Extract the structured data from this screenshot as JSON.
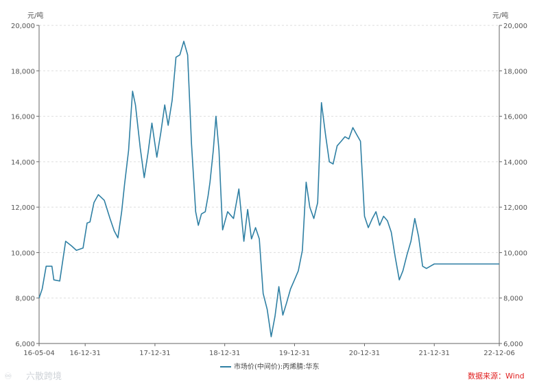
{
  "chart_data": {
    "type": "line",
    "title": "",
    "unit_left": "元/吨",
    "unit_right": "元/吨",
    "ylim": [
      6000,
      20000
    ],
    "yticks": [
      6000,
      8000,
      10000,
      12000,
      14000,
      16000,
      18000,
      20000
    ],
    "ytick_labels": [
      "6,000",
      "8,000",
      "10,000",
      "12,000",
      "14,000",
      "16,000",
      "18,000",
      "20,000"
    ],
    "xlim": [
      "2016-05-04",
      "2022-12-06"
    ],
    "xticks": [
      "2016-05-04",
      "2016-12-31",
      "2017-12-31",
      "2018-12-31",
      "2019-12-31",
      "2020-12-31",
      "2021-12-31",
      "2022-12-06"
    ],
    "xtick_labels": [
      "16-05-04",
      "16-12-31",
      "17-12-31",
      "18-12-31",
      "19-12-31",
      "20-12-31",
      "21-12-31",
      "22-12-06"
    ],
    "grid": true,
    "legend_position": "bottom-center",
    "series": [
      {
        "name": "市场价(中间价):丙烯腈:华东",
        "color": "#2e7fa3",
        "x": [
          "2016-05-04",
          "2016-05-20",
          "2016-06-10",
          "2016-07-10",
          "2016-07-20",
          "2016-08-20",
          "2016-09-20",
          "2016-10-20",
          "2016-11-15",
          "2016-12-20",
          "2017-01-10",
          "2017-01-25",
          "2017-02-15",
          "2017-03-10",
          "2017-04-10",
          "2017-05-10",
          "2017-06-01",
          "2017-06-20",
          "2017-07-10",
          "2017-07-25",
          "2017-08-15",
          "2017-08-25",
          "2017-09-05",
          "2017-09-20",
          "2017-10-15",
          "2017-11-05",
          "2017-11-25",
          "2017-12-15",
          "2018-01-10",
          "2018-01-31",
          "2018-02-20",
          "2018-03-10",
          "2018-03-31",
          "2018-04-20",
          "2018-05-10",
          "2018-05-31",
          "2018-06-20",
          "2018-07-10",
          "2018-08-01",
          "2018-08-15",
          "2018-08-31",
          "2018-09-20",
          "2018-10-05",
          "2018-10-15",
          "2018-11-01",
          "2018-11-15",
          "2018-12-01",
          "2018-12-10",
          "2018-12-20",
          "2019-01-15",
          "2019-02-15",
          "2019-03-15",
          "2019-04-10",
          "2019-04-30",
          "2019-05-20",
          "2019-06-10",
          "2019-06-30",
          "2019-07-20",
          "2019-08-10",
          "2019-08-31",
          "2019-09-20",
          "2019-10-10",
          "2019-10-31",
          "2019-11-20",
          "2019-12-10",
          "2019-12-31",
          "2020-01-20",
          "2020-02-10",
          "2020-03-01",
          "2020-03-20",
          "2020-04-10",
          "2020-04-30",
          "2020-05-20",
          "2020-06-10",
          "2020-06-30",
          "2020-07-20",
          "2020-08-10",
          "2020-08-31",
          "2020-09-20",
          "2020-10-10",
          "2020-10-31",
          "2020-11-20",
          "2020-12-10",
          "2020-12-31",
          "2021-01-20",
          "2021-02-10",
          "2021-03-01",
          "2021-03-20",
          "2021-04-10",
          "2021-04-30",
          "2021-05-20",
          "2021-06-10",
          "2021-07-01",
          "2021-07-20",
          "2021-08-10",
          "2021-08-31",
          "2021-09-20",
          "2021-10-10",
          "2021-10-31",
          "2021-11-20",
          "2021-12-10",
          "2021-12-31",
          "2022-01-20",
          "2022-02-10",
          "2022-03-01",
          "2022-03-20",
          "2022-04-10",
          "2022-04-30",
          "2022-05-20",
          "2022-06-10",
          "2022-06-30",
          "2022-07-20",
          "2022-08-10",
          "2022-08-31",
          "2022-09-20",
          "2022-10-10",
          "2022-10-31",
          "2022-11-20",
          "2022-12-06"
        ],
        "values": [
          8000,
          8400,
          9400,
          9400,
          8800,
          8750,
          10500,
          10300,
          10100,
          10200,
          11300,
          11350,
          12200,
          12550,
          12300,
          11500,
          10950,
          10650,
          11800,
          13000,
          14500,
          15800,
          17100,
          16500,
          14600,
          13300,
          14400,
          15700,
          14200,
          15300,
          16500,
          15600,
          16700,
          18600,
          18700,
          19300,
          18700,
          14800,
          11800,
          11200,
          11700,
          11800,
          12500,
          13100,
          14500,
          16000,
          14500,
          12800,
          11000,
          11800,
          11500,
          12800,
          10500,
          11900,
          10600,
          11100,
          10600,
          8200,
          7500,
          6300,
          7200,
          8500,
          7250,
          7800,
          8400,
          8800,
          9200,
          10100,
          13100,
          12000,
          11500,
          12200,
          16600,
          15200,
          14000,
          13900,
          14700,
          14900,
          15100,
          15000,
          15500,
          15200,
          14900,
          11600,
          11100,
          11500,
          11800,
          11200,
          11600,
          11400,
          10900,
          9800,
          8800,
          9200,
          9900,
          10500,
          11500,
          10700,
          9400,
          9300,
          9400,
          9500,
          9500,
          9500,
          9500,
          9500,
          9500,
          9500,
          9500,
          9500,
          9500,
          9500,
          9500,
          9500,
          9500,
          9500,
          9500,
          9500,
          9500
        ]
      }
    ]
  },
  "source_text": "数据来源：Wind",
  "watermark_text": "六散跨境"
}
